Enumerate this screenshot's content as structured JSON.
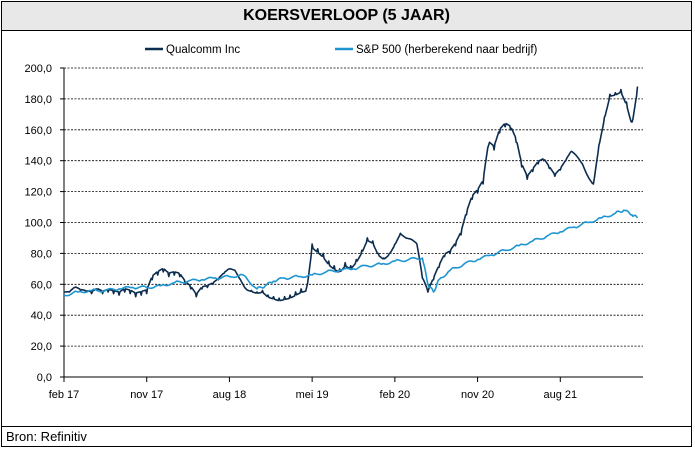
{
  "title": "KOERSVERLOOP (5 JAAR)",
  "source": "Bron: Refinitiv",
  "chart_data": {
    "type": "line",
    "ylim": [
      0,
      200
    ],
    "y_ticks": [
      "0,0",
      "20,0",
      "40,0",
      "60,0",
      "80,0",
      "100,0",
      "120,0",
      "140,0",
      "160,0",
      "180,0",
      "200,0"
    ],
    "x_ticks": [
      "feb 17",
      "nov 17",
      "aug 18",
      "mei 19",
      "feb 20",
      "nov 20",
      "aug 21"
    ],
    "grid": true,
    "legend_position": "top",
    "series": [
      {
        "name": "Qualcomm Inc",
        "color": "#0d2d4f",
        "points": [
          [
            0,
            55
          ],
          [
            0.2,
            55
          ],
          [
            0.4,
            58
          ],
          [
            0.6,
            56
          ],
          [
            0.8,
            55
          ],
          [
            1,
            54
          ],
          [
            1.2,
            56
          ],
          [
            1.4,
            54
          ],
          [
            1.6,
            55
          ],
          [
            1.8,
            54
          ],
          [
            2,
            53
          ],
          [
            2.2,
            55
          ],
          [
            2.4,
            54
          ],
          [
            2.6,
            52
          ],
          [
            2.8,
            53
          ],
          [
            3,
            54
          ],
          [
            3.2,
            63
          ],
          [
            3.4,
            66
          ],
          [
            3.6,
            68
          ],
          [
            3.8,
            65
          ],
          [
            4,
            66
          ],
          [
            4.2,
            65
          ],
          [
            4.4,
            60
          ],
          [
            4.6,
            57
          ],
          [
            4.8,
            52
          ],
          [
            5,
            57
          ],
          [
            5.2,
            58
          ],
          [
            5.4,
            60
          ],
          [
            5.6,
            63
          ],
          [
            5.8,
            67
          ],
          [
            6,
            70
          ],
          [
            6.2,
            69
          ],
          [
            6.4,
            63
          ],
          [
            6.6,
            57
          ],
          [
            6.8,
            56
          ],
          [
            7,
            55
          ],
          [
            7.2,
            56
          ],
          [
            7.4,
            53
          ],
          [
            7.6,
            52
          ],
          [
            7.8,
            51
          ],
          [
            8,
            52
          ],
          [
            8.2,
            53
          ],
          [
            8.4,
            55
          ],
          [
            8.6,
            57
          ],
          [
            8.8,
            58
          ],
          [
            9,
            86
          ],
          [
            9.2,
            83
          ],
          [
            9.4,
            80
          ],
          [
            9.6,
            75
          ],
          [
            9.8,
            72
          ],
          [
            10,
            70
          ],
          [
            10.2,
            74
          ],
          [
            10.4,
            72
          ],
          [
            10.6,
            76
          ],
          [
            10.8,
            82
          ],
          [
            11,
            90
          ],
          [
            11.2,
            88
          ],
          [
            11.4,
            80
          ],
          [
            11.6,
            77
          ],
          [
            11.8,
            80
          ],
          [
            12,
            86
          ],
          [
            12.2,
            93
          ],
          [
            12.4,
            90
          ],
          [
            12.6,
            89
          ],
          [
            12.8,
            86
          ],
          [
            13,
            64
          ],
          [
            13.2,
            55
          ],
          [
            13.4,
            63
          ],
          [
            13.6,
            71
          ],
          [
            13.8,
            78
          ],
          [
            14,
            80
          ],
          [
            14.2,
            85
          ],
          [
            14.4,
            92
          ],
          [
            14.6,
            105
          ],
          [
            14.8,
            115
          ],
          [
            15,
            119
          ],
          [
            15.2,
            125
          ],
          [
            15.4,
            150
          ],
          [
            15.6,
            147
          ],
          [
            15.8,
            158
          ],
          [
            16,
            162
          ],
          [
            16.2,
            160
          ],
          [
            16.4,
            152
          ],
          [
            16.6,
            136
          ],
          [
            16.8,
            128
          ],
          [
            17,
            133
          ],
          [
            17.2,
            138
          ],
          [
            17.4,
            140
          ],
          [
            17.6,
            135
          ],
          [
            17.8,
            130
          ],
          [
            18,
            134
          ],
          [
            18.2,
            140
          ],
          [
            18.4,
            146
          ],
          [
            18.6,
            143
          ],
          [
            18.8,
            138
          ],
          [
            19,
            130
          ],
          [
            19.2,
            125
          ],
          [
            19.4,
            150
          ],
          [
            19.6,
            168
          ],
          [
            19.8,
            183
          ],
          [
            20,
            184
          ],
          [
            20.2,
            186
          ],
          [
            20.4,
            178
          ],
          [
            20.6,
            165
          ],
          [
            20.8,
            188
          ]
        ]
      },
      {
        "name": "S&P 500 (herberekend naar bedrijf)",
        "color": "#1f95d0",
        "points": [
          [
            0,
            53
          ],
          [
            0.5,
            55
          ],
          [
            1,
            56
          ],
          [
            1.5,
            56
          ],
          [
            2,
            57
          ],
          [
            2.5,
            58
          ],
          [
            3,
            58
          ],
          [
            3.5,
            59
          ],
          [
            4,
            61
          ],
          [
            4.5,
            62
          ],
          [
            5,
            63
          ],
          [
            5.5,
            64
          ],
          [
            6,
            65
          ],
          [
            6.5,
            66
          ],
          [
            7,
            57
          ],
          [
            7.3,
            59
          ],
          [
            7.6,
            62
          ],
          [
            8,
            64
          ],
          [
            8.5,
            65
          ],
          [
            9,
            66
          ],
          [
            9.5,
            68
          ],
          [
            10,
            69
          ],
          [
            10.5,
            70
          ],
          [
            11,
            72
          ],
          [
            11.5,
            73
          ],
          [
            12,
            75
          ],
          [
            12.5,
            76
          ],
          [
            13,
            77
          ],
          [
            13.2,
            60
          ],
          [
            13.4,
            55
          ],
          [
            13.6,
            63
          ],
          [
            14,
            69
          ],
          [
            14.5,
            73
          ],
          [
            15,
            76
          ],
          [
            15.5,
            79
          ],
          [
            16,
            82
          ],
          [
            16.5,
            85
          ],
          [
            17,
            88
          ],
          [
            17.5,
            91
          ],
          [
            18,
            94
          ],
          [
            18.5,
            97
          ],
          [
            19,
            100
          ],
          [
            19.5,
            103
          ],
          [
            20,
            106
          ],
          [
            20.3,
            108
          ],
          [
            20.6,
            105
          ],
          [
            20.8,
            103
          ]
        ]
      }
    ]
  }
}
